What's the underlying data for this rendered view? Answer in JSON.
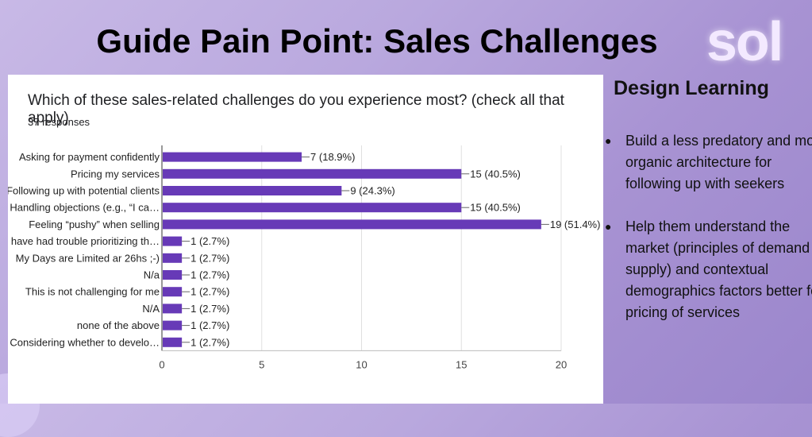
{
  "slide": {
    "title": "Guide Pain Point: Sales Challenges",
    "logo_text": "sol"
  },
  "chart_header": {
    "question": "Which of these sales-related challenges do you experience most? (check all that apply)",
    "responses": "37 responses"
  },
  "chart_data": {
    "type": "bar",
    "orientation": "horizontal",
    "categories": [
      "Asking for payment confidently",
      "Pricing my services",
      "Following up with potential clients",
      "Handling objections (e.g., “I ca…",
      "Feeling “pushy” when selling",
      "I have had trouble prioritizing th…",
      "My Days are Limited ar 26hs ;-)",
      "N/a",
      "This is not challenging for me",
      "N/A",
      "none of the above",
      "Considering whether to develo…"
    ],
    "values": [
      7,
      15,
      9,
      15,
      19,
      1,
      1,
      1,
      1,
      1,
      1,
      1
    ],
    "data_labels": [
      "7 (18.9%)",
      "15 (40.5%)",
      "9 (24.3%)",
      "15 (40.5%)",
      "19 (51.4%)",
      "1 (2.7%)",
      "1 (2.7%)",
      "1 (2.7%)",
      "1 (2.7%)",
      "1 (2.7%)",
      "1 (2.7%)",
      "1 (2.7%)"
    ],
    "xlim": [
      0,
      20
    ],
    "xticks": [
      0,
      5,
      10,
      15,
      20
    ],
    "grid": true,
    "bar_color": "#673ab7"
  },
  "design_learning": {
    "title": "Design Learning",
    "items": [
      "Build a less predatory and more organic architecture for following up with seekers",
      "Help them understand the market (principles of demand & supply) and contextual demographics factors better for pricing of services"
    ]
  }
}
